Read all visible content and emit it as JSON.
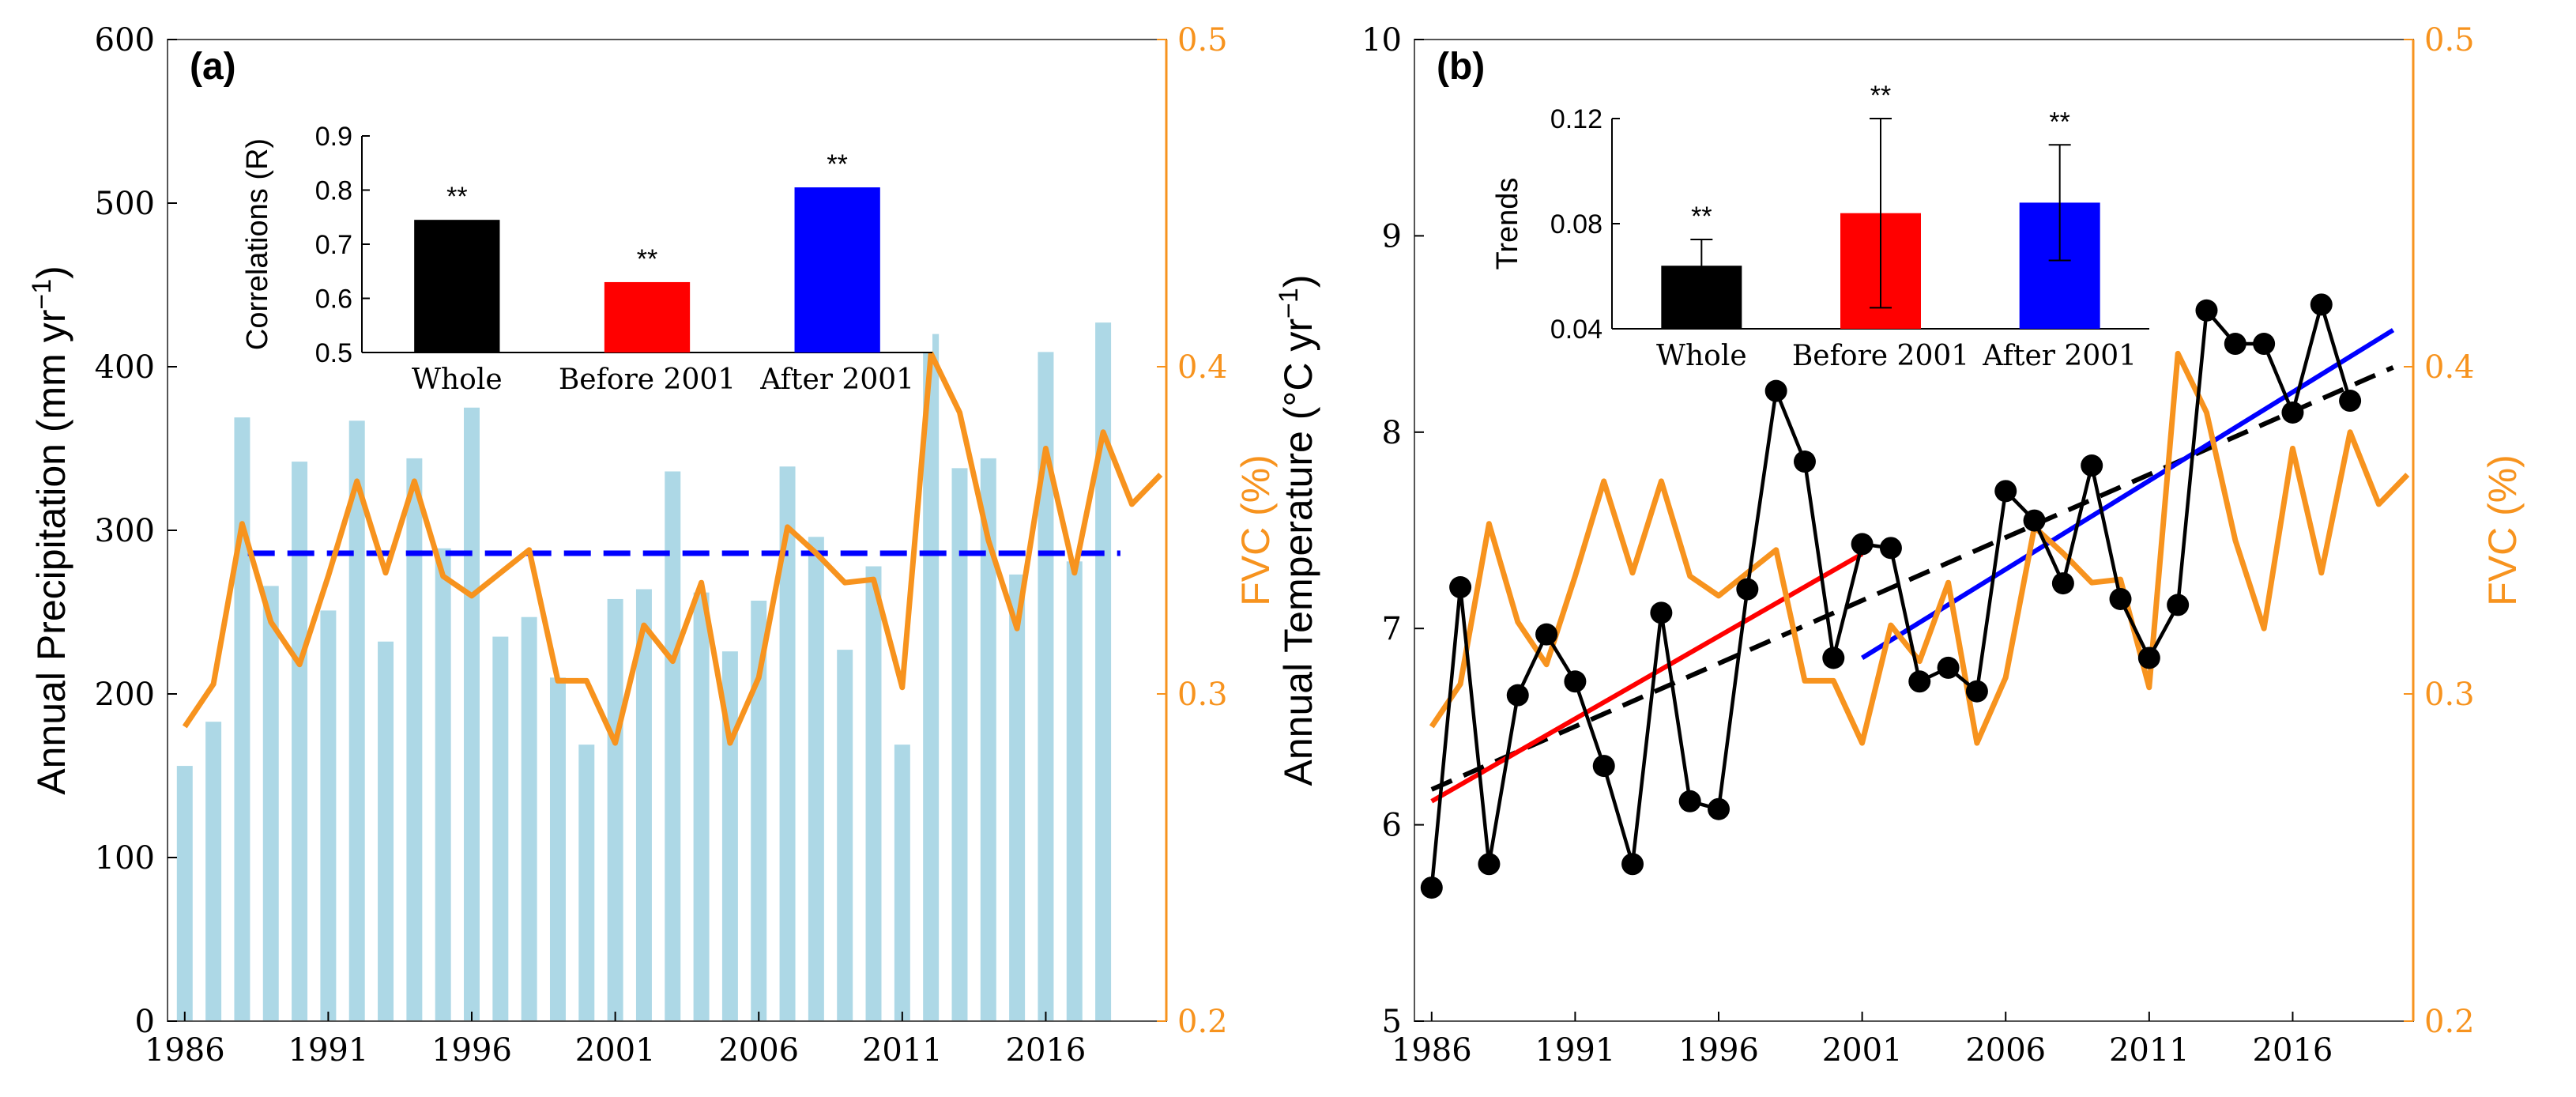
{
  "colors": {
    "bar": "#add8e6",
    "fvc": "#f7931e",
    "mean_line": "#0000ff",
    "temp": "#000000",
    "trend_before": "#ff0000",
    "trend_after": "#0000ff",
    "trend_whole": "#000000",
    "inset_whole": "#000000",
    "inset_before": "#ff0000",
    "inset_after": "#0000ff"
  },
  "chart_data": [
    {
      "panel_label": "(a)",
      "type": "bar+line",
      "ylabel": "Annual Precipitation (mm yr−1)",
      "ylabel_main": "Annual Precipitation (mm yr",
      "ylabel_sup": "−1",
      "ylabel_close": ")",
      "y2label": "FVC (%)",
      "ylim": [
        0,
        600
      ],
      "y_ticks": [
        0,
        100,
        200,
        300,
        400,
        500,
        600
      ],
      "y2lim": [
        0.2,
        0.5
      ],
      "y2_ticks": [
        0.2,
        0.3,
        0.4,
        0.5
      ],
      "xlim": [
        1985.4,
        2020.2
      ],
      "x_ticks": [
        1986,
        1991,
        1996,
        2001,
        2006,
        2011,
        2016
      ],
      "years": [
        1986,
        1987,
        1988,
        1989,
        1990,
        1991,
        1992,
        1993,
        1994,
        1995,
        1996,
        1997,
        1998,
        1999,
        2000,
        2001,
        2002,
        2003,
        2004,
        2005,
        2006,
        2007,
        2008,
        2009,
        2010,
        2011,
        2012,
        2013,
        2014,
        2015,
        2016,
        2017,
        2018
      ],
      "precipitation": [
        156,
        183,
        369,
        266,
        342,
        251,
        367,
        232,
        344,
        289,
        375,
        235,
        247,
        210,
        169,
        258,
        264,
        336,
        262,
        226,
        257,
        339,
        296,
        227,
        278,
        169,
        420,
        338,
        344,
        273,
        409,
        281,
        427
      ],
      "mean_precipitation": 286,
      "fvc_years": [
        1986,
        1987,
        1988,
        1989,
        1990,
        1991,
        1992,
        1993,
        1994,
        1995,
        1996,
        1997,
        1998,
        1999,
        2000,
        2001,
        2002,
        2003,
        2004,
        2005,
        2006,
        2007,
        2008,
        2009,
        2010,
        2011,
        2012,
        2013,
        2014,
        2015,
        2016,
        2017,
        2018,
        2019,
        2020
      ],
      "fvc": [
        0.29,
        0.303,
        0.352,
        0.322,
        0.309,
        0.336,
        0.365,
        0.337,
        0.365,
        0.336,
        0.33,
        0.337,
        0.344,
        0.304,
        0.304,
        0.285,
        0.321,
        0.31,
        0.334,
        0.285,
        0.305,
        0.351,
        0.343,
        0.334,
        0.335,
        0.302,
        0.404,
        0.386,
        0.347,
        0.32,
        0.375,
        0.337,
        0.38,
        0.358,
        0.367
      ],
      "inset": {
        "type": "bar",
        "ylabel": "Correlations (R)",
        "ylim": [
          0.5,
          0.9
        ],
        "y_ticks": [
          "0.5",
          "0.6",
          "0.7",
          "0.8",
          "0.9"
        ],
        "categories": [
          "Whole",
          "Before 2001",
          "After 2001"
        ],
        "values": [
          0.745,
          0.63,
          0.805
        ],
        "significance": [
          "**",
          "**",
          "**"
        ]
      }
    },
    {
      "panel_label": "(b)",
      "type": "line+scatter",
      "ylabel": "Annual Temperature (°C yr−1)",
      "ylabel_main": "Annual Temperature (°C yr",
      "ylabel_sup": "−1",
      "ylabel_close": ")",
      "y2label": "FVC (%)",
      "ylim": [
        5,
        10
      ],
      "y_ticks": [
        5,
        6,
        7,
        8,
        9,
        10
      ],
      "y2lim": [
        0.2,
        0.5
      ],
      "y2_ticks": [
        0.2,
        0.3,
        0.4,
        0.5
      ],
      "xlim": [
        1985.4,
        2020.2
      ],
      "x_ticks": [
        1986,
        1991,
        1996,
        2001,
        2006,
        2011,
        2016
      ],
      "years": [
        1986,
        1987,
        1988,
        1989,
        1990,
        1991,
        1992,
        1993,
        1994,
        1995,
        1996,
        1997,
        1998,
        1999,
        2000,
        2001,
        2002,
        2003,
        2004,
        2005,
        2006,
        2007,
        2008,
        2009,
        2010,
        2011,
        2012,
        2013,
        2014,
        2015,
        2016,
        2017,
        2018
      ],
      "temperature": [
        5.68,
        7.21,
        5.8,
        6.66,
        6.97,
        6.73,
        6.3,
        5.8,
        7.08,
        6.12,
        6.08,
        7.2,
        8.21,
        7.85,
        6.85,
        7.43,
        7.41,
        6.73,
        6.8,
        6.68,
        7.7,
        7.55,
        7.23,
        7.83,
        7.15,
        6.85,
        7.12,
        8.62,
        8.45,
        8.45,
        8.1,
        8.65,
        8.16
      ],
      "trend_whole": {
        "x": [
          1986,
          2019.5
        ],
        "y": [
          6.18,
          8.33
        ]
      },
      "trend_before": {
        "x": [
          1986,
          2001
        ],
        "y": [
          6.12,
          7.38
        ]
      },
      "trend_after": {
        "x": [
          2001,
          2019.5
        ],
        "y": [
          6.85,
          8.52
        ]
      },
      "fvc_years": [
        1986,
        1987,
        1988,
        1989,
        1990,
        1991,
        1992,
        1993,
        1994,
        1995,
        1996,
        1997,
        1998,
        1999,
        2000,
        2001,
        2002,
        2003,
        2004,
        2005,
        2006,
        2007,
        2008,
        2009,
        2010,
        2011,
        2012,
        2013,
        2014,
        2015,
        2016,
        2017,
        2018,
        2019,
        2020
      ],
      "fvc": [
        0.29,
        0.303,
        0.352,
        0.322,
        0.309,
        0.336,
        0.365,
        0.337,
        0.365,
        0.336,
        0.33,
        0.337,
        0.344,
        0.304,
        0.304,
        0.285,
        0.321,
        0.31,
        0.334,
        0.285,
        0.305,
        0.351,
        0.343,
        0.334,
        0.335,
        0.302,
        0.404,
        0.386,
        0.347,
        0.32,
        0.375,
        0.337,
        0.38,
        0.358,
        0.367
      ],
      "inset": {
        "type": "bar",
        "ylabel": "Trends",
        "ylim": [
          0.04,
          0.12
        ],
        "y_ticks": [
          "0.04",
          "0.08",
          "0.12"
        ],
        "categories": [
          "Whole",
          "Before 2001",
          "After 2001"
        ],
        "values": [
          0.064,
          0.084,
          0.088
        ],
        "errors": [
          0.01,
          0.036,
          0.022
        ],
        "significance": [
          "**",
          "**",
          "**"
        ]
      }
    }
  ]
}
